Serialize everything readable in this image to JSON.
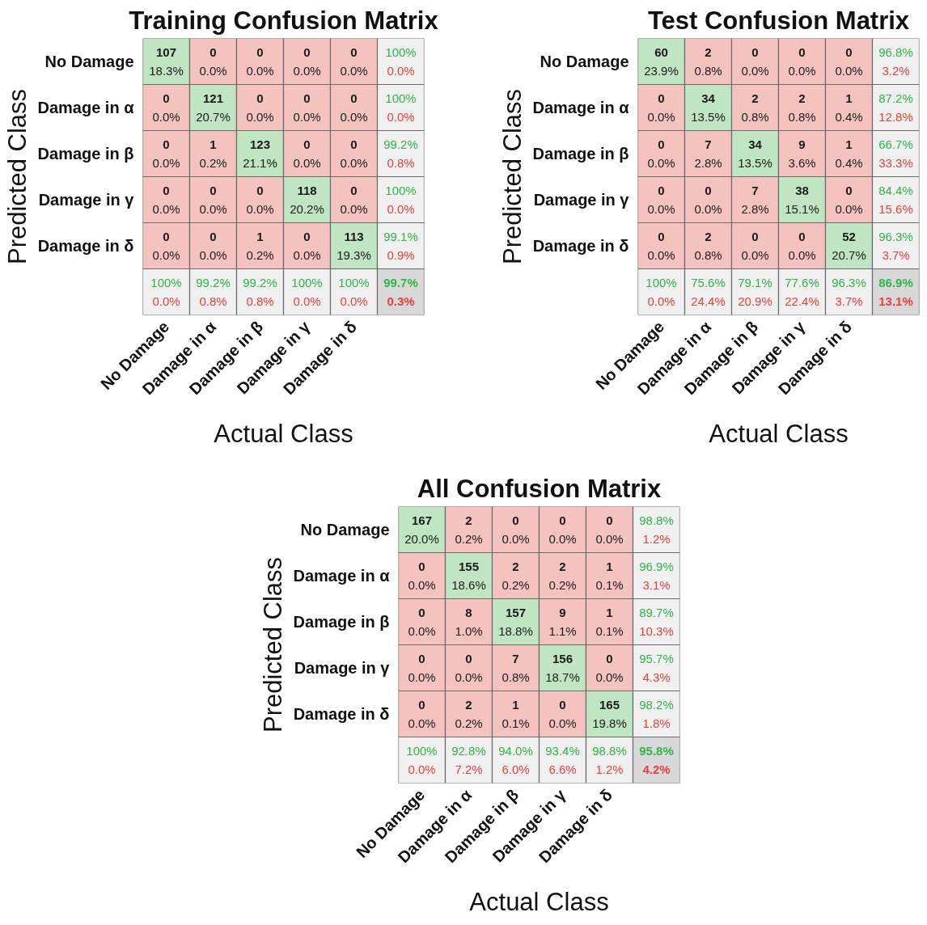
{
  "chart_data": [
    {
      "type": "heatmap",
      "title": "Training Confusion Matrix",
      "xlabel": "Actual Class",
      "ylabel": "Predicted Class",
      "categories": [
        "No Damage",
        "Damage in α",
        "Damage in β",
        "Damage in γ",
        "Damage in δ",
        null
      ],
      "y_categories": [
        "No Damage",
        "Damage in α",
        "Damage in β",
        "Damage in γ",
        "Damage in δ",
        null
      ],
      "cells": [
        [
          107,
          0,
          0,
          0,
          0,
          100
        ],
        [
          0,
          121,
          0,
          0,
          0,
          100
        ],
        [
          0,
          1,
          123,
          0,
          0,
          99.2
        ],
        [
          0,
          0,
          0,
          118,
          0,
          100
        ],
        [
          0,
          0,
          1,
          0,
          113,
          99.1
        ],
        [
          100,
          99.2,
          99.2,
          100,
          100,
          99.7
        ]
      ],
      "cell_labels": [
        [
          "107",
          "0",
          "0",
          "0",
          "0",
          "100%"
        ],
        [
          "0",
          "121",
          "0",
          "0",
          "0",
          "100%"
        ],
        [
          "0",
          "1",
          "123",
          "0",
          "0",
          "99.2%"
        ],
        [
          "0",
          "0",
          "0",
          "118",
          "0",
          "100%"
        ],
        [
          "0",
          "0",
          "1",
          "0",
          "113",
          "99.1%"
        ],
        [
          "100%",
          "99.2%",
          "99.2%",
          "100%",
          "100%",
          "99.7%"
        ]
      ],
      "colors": [
        [
          "#bfe5c2",
          "#f4c2bf",
          "#f4c2bf",
          "#f4c2bf",
          "#f4c2bf",
          "#f0f0f0"
        ],
        [
          "#f4c2bf",
          "#bfe5c2",
          "#f4c2bf",
          "#f4c2bf",
          "#f4c2bf",
          "#f0f0f0"
        ],
        [
          "#f4c2bf",
          "#f4c2bf",
          "#bfe5c2",
          "#f4c2bf",
          "#f4c2bf",
          "#f0f0f0"
        ],
        [
          "#f4c2bf",
          "#f4c2bf",
          "#f4c2bf",
          "#bfe5c2",
          "#f4c2bf",
          "#f0f0f0"
        ],
        [
          "#f4c2bf",
          "#f4c2bf",
          "#f4c2bf",
          "#f4c2bf",
          "#bfe5c2",
          "#f0f0f0"
        ],
        [
          "#f0f0f0",
          "#f0f0f0",
          "#f0f0f0",
          "#f0f0f0",
          "#f0f0f0",
          "#d8d8d8"
        ]
      ],
      "annotations": [
        "18.3%",
        "0.0%",
        "0.0%",
        "0.0%",
        "0.0%",
        "0.0%",
        "0.0%",
        "20.7%",
        "0.0%",
        "0.0%",
        "0.0%",
        "0.0%",
        "0.0%",
        "0.2%",
        "21.1%",
        "0.0%",
        "0.0%",
        "0.8%",
        "0.0%",
        "0.0%",
        "0.0%",
        "20.2%",
        "0.0%",
        "0.0%",
        "0.0%",
        "0.0%",
        "0.2%",
        "0.0%",
        "19.3%",
        "0.9%",
        "0.0%",
        "0.8%",
        "0.8%",
        "0.0%",
        "0.0%",
        "0.3%"
      ]
    },
    {
      "type": "heatmap",
      "title": "Test Confusion Matrix",
      "xlabel": "Actual Class",
      "ylabel": "Predicted Class",
      "categories": [
        "No Damage",
        "Damage in α",
        "Damage in β",
        "Damage in γ",
        "Damage in δ",
        null
      ],
      "y_categories": [
        "No Damage",
        "Damage in α",
        "Damage in β",
        "Damage in γ",
        "Damage in δ",
        null
      ],
      "cells": [
        [
          60,
          2,
          0,
          0,
          0,
          96.8
        ],
        [
          0,
          34,
          2,
          2,
          1,
          87.2
        ],
        [
          0,
          7,
          34,
          9,
          1,
          66.7
        ],
        [
          0,
          0,
          7,
          38,
          0,
          84.4
        ],
        [
          0,
          2,
          0,
          0,
          52,
          96.3
        ],
        [
          100,
          75.6,
          79.1,
          77.6,
          96.3,
          86.9
        ]
      ],
      "cell_labels": [
        [
          "60",
          "2",
          "0",
          "0",
          "0",
          "96.8%"
        ],
        [
          "0",
          "34",
          "2",
          "2",
          "1",
          "87.2%"
        ],
        [
          "0",
          "7",
          "34",
          "9",
          "1",
          "66.7%"
        ],
        [
          "0",
          "0",
          "7",
          "38",
          "0",
          "84.4%"
        ],
        [
          "0",
          "2",
          "0",
          "0",
          "52",
          "96.3%"
        ],
        [
          "100%",
          "75.6%",
          "79.1%",
          "77.6%",
          "96.3%",
          "86.9%"
        ]
      ],
      "colors": [
        [
          "#bfe5c2",
          "#f4c2bf",
          "#f4c2bf",
          "#f4c2bf",
          "#f4c2bf",
          "#f0f0f0"
        ],
        [
          "#f4c2bf",
          "#bfe5c2",
          "#f4c2bf",
          "#f4c2bf",
          "#f4c2bf",
          "#f0f0f0"
        ],
        [
          "#f4c2bf",
          "#f4c2bf",
          "#bfe5c2",
          "#f4c2bf",
          "#f4c2bf",
          "#f0f0f0"
        ],
        [
          "#f4c2bf",
          "#f4c2bf",
          "#f4c2bf",
          "#bfe5c2",
          "#f4c2bf",
          "#f0f0f0"
        ],
        [
          "#f4c2bf",
          "#f4c2bf",
          "#f4c2bf",
          "#f4c2bf",
          "#bfe5c2",
          "#f0f0f0"
        ],
        [
          "#f0f0f0",
          "#f0f0f0",
          "#f0f0f0",
          "#f0f0f0",
          "#f0f0f0",
          "#d8d8d8"
        ]
      ],
      "annotations": [
        "23.9%",
        "0.8%",
        "0.0%",
        "0.0%",
        "0.0%",
        "3.2%",
        "0.0%",
        "13.5%",
        "0.8%",
        "0.8%",
        "0.4%",
        "12.8%",
        "0.0%",
        "2.8%",
        "13.5%",
        "3.6%",
        "0.4%",
        "33.3%",
        "0.0%",
        "0.0%",
        "2.8%",
        "15.1%",
        "0.0%",
        "15.6%",
        "0.0%",
        "0.8%",
        "0.0%",
        "0.0%",
        "20.7%",
        "3.7%",
        "0.0%",
        "24.4%",
        "20.9%",
        "22.4%",
        "3.7%",
        "13.1%"
      ]
    },
    {
      "type": "heatmap",
      "title": "All Confusion Matrix",
      "xlabel": "Actual Class",
      "ylabel": "Predicted Class",
      "categories": [
        "No Damage",
        "Damage in α",
        "Damage in β",
        "Damage in γ",
        "Damage in δ",
        null
      ],
      "y_categories": [
        "No Damage",
        "Damage in α",
        "Damage in β",
        "Damage in γ",
        "Damage in δ",
        null
      ],
      "cells": [
        [
          167,
          2,
          0,
          0,
          0,
          98.8
        ],
        [
          0,
          155,
          2,
          2,
          1,
          96.9
        ],
        [
          0,
          8,
          157,
          9,
          1,
          89.7
        ],
        [
          0,
          0,
          7,
          156,
          0,
          95.7
        ],
        [
          0,
          2,
          1,
          0,
          165,
          98.2
        ],
        [
          100,
          92.8,
          94.0,
          93.4,
          98.8,
          95.8
        ]
      ],
      "cell_labels": [
        [
          "167",
          "2",
          "0",
          "0",
          "0",
          "98.8%"
        ],
        [
          "0",
          "155",
          "2",
          "2",
          "1",
          "96.9%"
        ],
        [
          "0",
          "8",
          "157",
          "9",
          "1",
          "89.7%"
        ],
        [
          "0",
          "0",
          "7",
          "156",
          "0",
          "95.7%"
        ],
        [
          "0",
          "2",
          "1",
          "0",
          "165",
          "98.2%"
        ],
        [
          "100%",
          "92.8%",
          "94.0%",
          "93.4%",
          "98.8%",
          "95.8%"
        ]
      ],
      "colors": [
        [
          "#bfe5c2",
          "#f4c2bf",
          "#f4c2bf",
          "#f4c2bf",
          "#f4c2bf",
          "#f0f0f0"
        ],
        [
          "#f4c2bf",
          "#bfe5c2",
          "#f4c2bf",
          "#f4c2bf",
          "#f4c2bf",
          "#f0f0f0"
        ],
        [
          "#f4c2bf",
          "#f4c2bf",
          "#bfe5c2",
          "#f4c2bf",
          "#f4c2bf",
          "#f0f0f0"
        ],
        [
          "#f4c2bf",
          "#f4c2bf",
          "#f4c2bf",
          "#bfe5c2",
          "#f4c2bf",
          "#f0f0f0"
        ],
        [
          "#f4c2bf",
          "#f4c2bf",
          "#f4c2bf",
          "#f4c2bf",
          "#bfe5c2",
          "#f0f0f0"
        ],
        [
          "#f0f0f0",
          "#f0f0f0",
          "#f0f0f0",
          "#f0f0f0",
          "#f0f0f0",
          "#d8d8d8"
        ]
      ],
      "annotations": [
        "20.0%",
        "0.2%",
        "0.0%",
        "0.0%",
        "0.0%",
        "1.2%",
        "0.0%",
        "18.6%",
        "0.2%",
        "0.2%",
        "0.1%",
        "3.1%",
        "0.0%",
        "1.0%",
        "18.8%",
        "1.1%",
        "0.1%",
        "10.3%",
        "0.0%",
        "0.0%",
        "0.8%",
        "18.7%",
        "0.0%",
        "4.3%",
        "0.0%",
        "0.2%",
        "0.1%",
        "0.0%",
        "19.8%",
        "1.8%",
        "0.0%",
        "7.2%",
        "6.0%",
        "6.6%",
        "1.2%",
        "4.2%"
      ]
    }
  ]
}
